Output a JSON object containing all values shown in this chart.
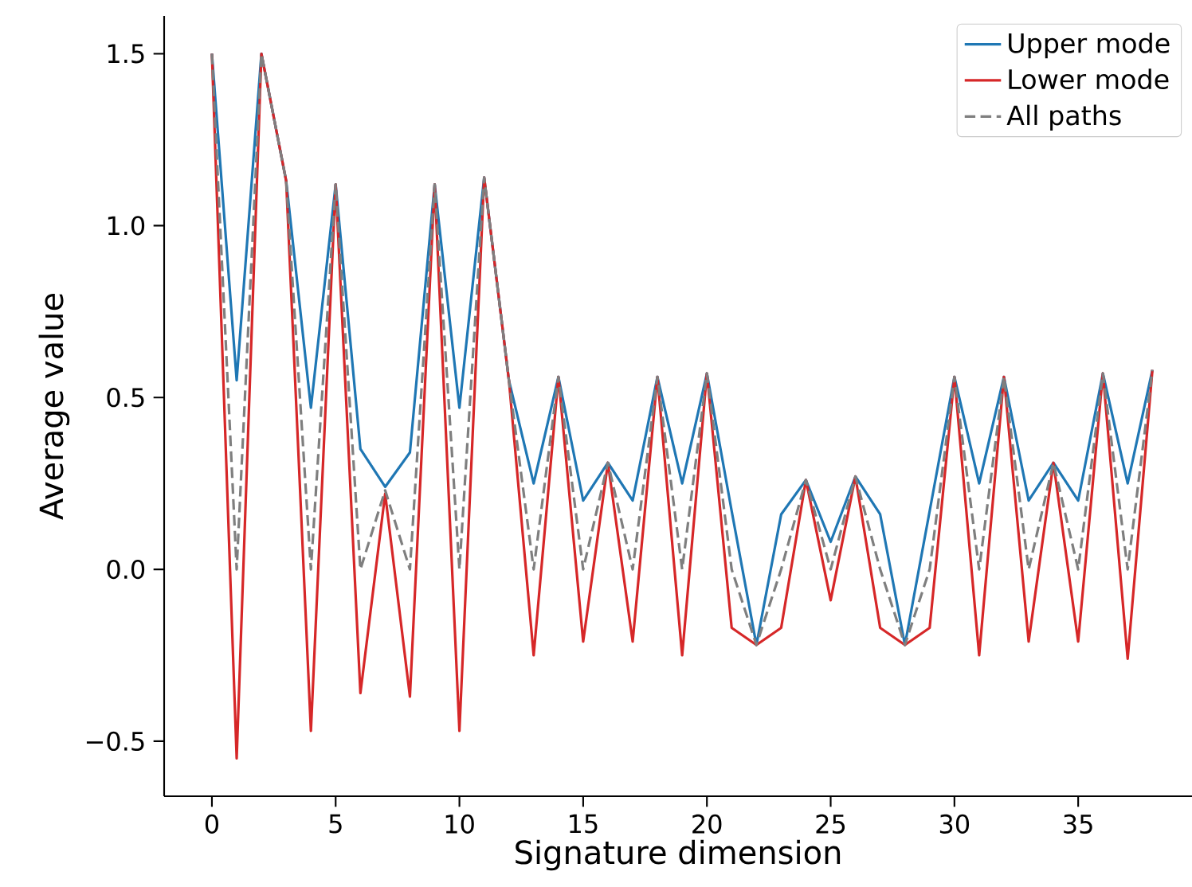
{
  "chart_data": {
    "type": "line",
    "xlabel": "Signature dimension",
    "ylabel": "Average value",
    "x": [
      0,
      1,
      2,
      3,
      4,
      5,
      6,
      7,
      8,
      9,
      10,
      11,
      12,
      13,
      14,
      15,
      16,
      17,
      18,
      19,
      20,
      21,
      22,
      23,
      24,
      25,
      26,
      27,
      28,
      29,
      30,
      31,
      32,
      33,
      34,
      35,
      36,
      37,
      38
    ],
    "series": [
      {
        "name": "Upper mode",
        "color": "#1f77b4",
        "line_style": "solid",
        "values": [
          1.5,
          0.55,
          1.5,
          1.13,
          0.47,
          1.12,
          0.35,
          0.24,
          0.34,
          1.12,
          0.47,
          1.14,
          0.55,
          0.25,
          0.56,
          0.2,
          0.31,
          0.2,
          0.56,
          0.25,
          0.57,
          0.17,
          -0.22,
          0.16,
          0.26,
          0.08,
          0.27,
          0.16,
          -0.22,
          0.17,
          0.56,
          0.25,
          0.56,
          0.2,
          0.31,
          0.2,
          0.57,
          0.25,
          0.58
        ]
      },
      {
        "name": "Lower mode",
        "color": "#d62728",
        "line_style": "solid",
        "values": [
          1.5,
          -0.55,
          1.5,
          1.13,
          -0.47,
          1.12,
          -0.36,
          0.22,
          -0.37,
          1.12,
          -0.47,
          1.14,
          0.55,
          -0.25,
          0.56,
          -0.21,
          0.31,
          -0.21,
          0.56,
          -0.25,
          0.57,
          -0.17,
          -0.22,
          -0.17,
          0.26,
          -0.09,
          0.27,
          -0.17,
          -0.22,
          -0.17,
          0.56,
          -0.25,
          0.56,
          -0.21,
          0.31,
          -0.21,
          0.57,
          -0.26,
          0.58
        ]
      },
      {
        "name": "All paths",
        "color": "#7f7f7f",
        "line_style": "dashed",
        "values": [
          1.5,
          0,
          1.5,
          1.13,
          0,
          1.12,
          0,
          0.23,
          0,
          1.12,
          0,
          1.14,
          0.55,
          0,
          0.56,
          0,
          0.31,
          0,
          0.56,
          0,
          0.57,
          0,
          -0.22,
          0,
          0.26,
          0,
          0.27,
          0,
          -0.22,
          0,
          0.56,
          0,
          0.56,
          0,
          0.31,
          0,
          0.57,
          0,
          0.58
        ]
      }
    ],
    "xlim": [
      -1.93,
      39.6
    ],
    "ylim": [
      -0.66,
      1.61
    ],
    "xticks": [
      0,
      5,
      10,
      15,
      20,
      25,
      30,
      35
    ],
    "yticks": [
      {
        "value": -0.5,
        "label": "−0.5"
      },
      {
        "value": 0,
        "label": "0.0"
      },
      0.5,
      {
        "value": 1,
        "label": "1.0"
      },
      1.5
    ],
    "grid": false,
    "legend": "top right",
    "marker": "none"
  }
}
